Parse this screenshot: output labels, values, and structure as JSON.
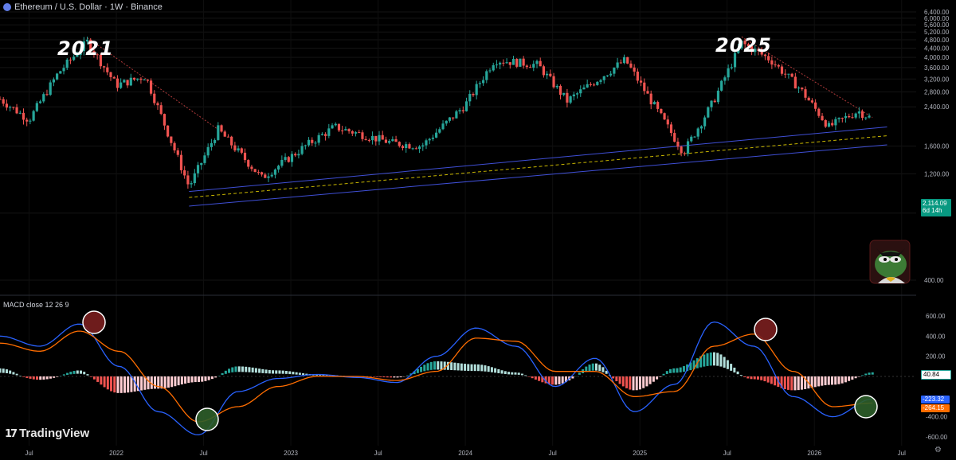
{
  "header": {
    "title": "Ethereum / U.S. Dollar · 1W · Binance",
    "icon": "ethereum-coin-icon"
  },
  "annotations": {
    "left": "2021",
    "right": "2025"
  },
  "price_tag": {
    "price": "2,114.09",
    "countdown": "6d 14h"
  },
  "macd": {
    "label": "MACD close 12 26 9",
    "hist_value": "40.84",
    "macd_value": "-223.32",
    "signal_value": "-264.15"
  },
  "branding": {
    "name": "TradingView"
  },
  "colors": {
    "up": "#26a69a",
    "down": "#ef5350",
    "macd": "#2962ff",
    "signal": "#ff6d00",
    "tag": "#089981"
  },
  "chart_data": [
    {
      "type": "candlestick",
      "title": "Ethereum / U.S. Dollar · 1W · Binance",
      "y_scale": "log",
      "ylim": [
        400,
        6400
      ],
      "y_ticks": [
        "6,400.00",
        "6,000.00",
        "5,600.00",
        "5,200.00",
        "4,800.00",
        "4,400.00",
        "4,000.00",
        "3,600.00",
        "3,200.00",
        "2,800.00",
        "2,400.00",
        "1,600.00",
        "1,200.00",
        "800.00",
        "400.00"
      ],
      "x_ticks": [
        "Jul",
        "2022",
        "Jul",
        "2023",
        "Jul",
        "2024",
        "Jul",
        "2025",
        "Jul",
        "2026",
        "Jul"
      ],
      "x_range": [
        "2021-05",
        "2026-08"
      ],
      "price_path": [
        {
          "t": "2021-05",
          "v": 2600
        },
        {
          "t": "2021-07",
          "v": 2100
        },
        {
          "t": "2021-09",
          "v": 3400
        },
        {
          "t": "2021-11",
          "v": 4700
        },
        {
          "t": "2022-01",
          "v": 3000
        },
        {
          "t": "2022-03",
          "v": 3300
        },
        {
          "t": "2022-06",
          "v": 1050
        },
        {
          "t": "2022-08",
          "v": 1900
        },
        {
          "t": "2022-11",
          "v": 1150
        },
        {
          "t": "2023-02",
          "v": 1600
        },
        {
          "t": "2023-04",
          "v": 1950
        },
        {
          "t": "2023-08",
          "v": 1650
        },
        {
          "t": "2023-10",
          "v": 1600
        },
        {
          "t": "2024-01",
          "v": 2450
        },
        {
          "t": "2024-03",
          "v": 3900
        },
        {
          "t": "2024-06",
          "v": 3700
        },
        {
          "t": "2024-08",
          "v": 2550
        },
        {
          "t": "2024-12",
          "v": 3900
        },
        {
          "t": "2025-04",
          "v": 1500
        },
        {
          "t": "2025-06",
          "v": 2500
        },
        {
          "t": "2025-08",
          "v": 4650
        },
        {
          "t": "2025-10",
          "v": 3900
        },
        {
          "t": "2025-12",
          "v": 2900
        },
        {
          "t": "2026-02",
          "v": 1950
        },
        {
          "t": "2026-04",
          "v": 2300
        },
        {
          "t": "2026-05",
          "v": 2114
        }
      ],
      "last_price": 2114.09
    },
    {
      "type": "line",
      "title": "MACD close 12 26 9",
      "ylim": [
        -600,
        600
      ],
      "y_ticks": [
        "600.00",
        "400.00",
        "200.00",
        "-400.00",
        "-600.00"
      ],
      "series": [
        {
          "name": "MACD",
          "values": [
            400,
            300,
            520,
            100,
            -350,
            -580,
            -150,
            -20,
            20,
            -10,
            -60,
            200,
            480,
            300,
            -100,
            180,
            -350,
            -80,
            540,
            300,
            -200,
            -400,
            -223
          ]
        },
        {
          "name": "Signal",
          "values": [
            330,
            250,
            450,
            250,
            -100,
            -450,
            -300,
            -100,
            0,
            0,
            -40,
            50,
            380,
            350,
            50,
            50,
            -200,
            -150,
            300,
            420,
            50,
            -300,
            -264
          ]
        }
      ],
      "histogram": [
        80,
        -60,
        60,
        -300,
        -220,
        -100,
        100,
        60,
        20,
        0,
        -20,
        150,
        120,
        40,
        -150,
        130,
        -250,
        80,
        240,
        -50,
        -250,
        -150,
        41
      ]
    }
  ]
}
